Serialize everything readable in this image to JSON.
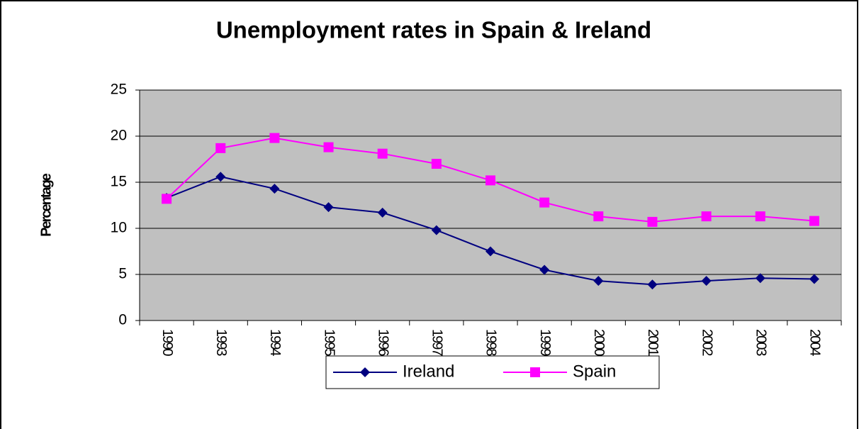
{
  "chart_data": {
    "type": "line",
    "title": "Unemployment rates in Spain & Ireland",
    "ylabel": "Percentage",
    "categories": [
      "1990",
      "1993",
      "1994",
      "1995",
      "1996",
      "1997",
      "1998",
      "1999",
      "2000",
      "2001",
      "2002",
      "2003",
      "2004"
    ],
    "series": [
      {
        "name": "Ireland",
        "color": "#000080",
        "marker": "diamond",
        "values": [
          13.3,
          15.6,
          14.3,
          12.3,
          11.7,
          9.8,
          7.5,
          5.5,
          4.3,
          3.9,
          4.3,
          4.6,
          4.5
        ]
      },
      {
        "name": "Spain",
        "color": "#ff00ff",
        "marker": "square",
        "values": [
          13.2,
          18.7,
          19.8,
          18.8,
          18.1,
          17.0,
          15.2,
          12.8,
          11.3,
          10.7,
          11.3,
          11.3,
          10.8
        ]
      }
    ],
    "ylim": [
      0,
      25
    ],
    "yticks": [
      0,
      5,
      10,
      15,
      20,
      25
    ],
    "grid": true,
    "legend": "bottom"
  }
}
